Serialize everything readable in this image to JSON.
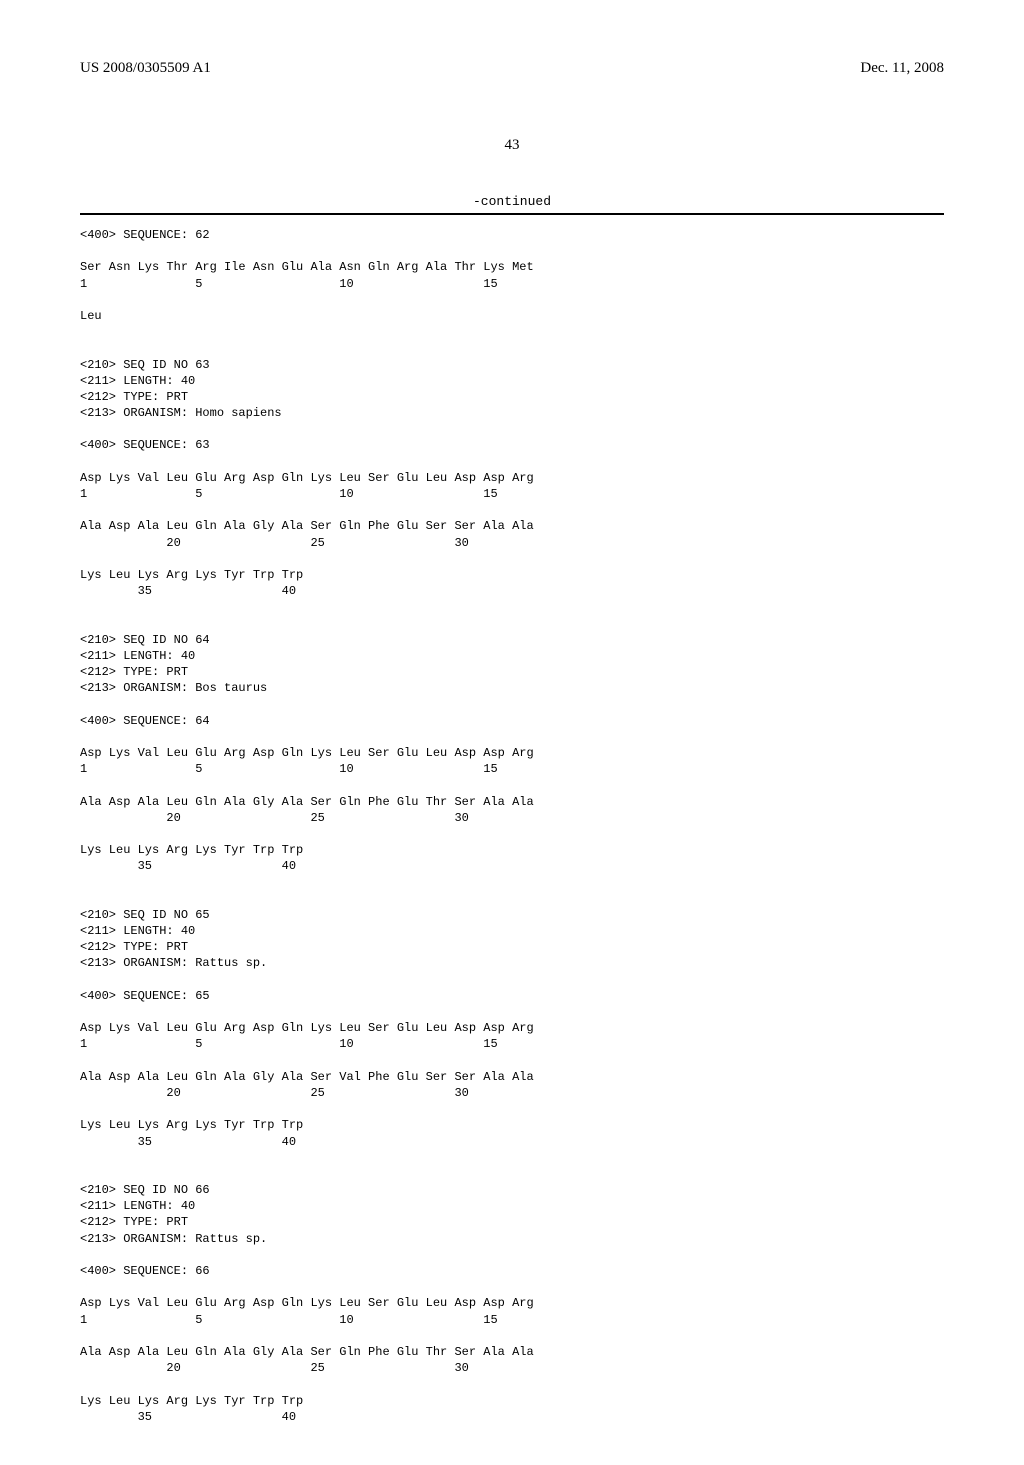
{
  "header": {
    "pub_number": "US 2008/0305509 A1",
    "pub_date": "Dec. 11, 2008",
    "page_number": "43"
  },
  "continued_label": "-continued",
  "sequence_listing": "<400> SEQUENCE: 62\n\nSer Asn Lys Thr Arg Ile Asn Glu Ala Asn Gln Arg Ala Thr Lys Met\n1               5                   10                  15\n\nLeu\n\n\n<210> SEQ ID NO 63\n<211> LENGTH: 40\n<212> TYPE: PRT\n<213> ORGANISM: Homo sapiens\n\n<400> SEQUENCE: 63\n\nAsp Lys Val Leu Glu Arg Asp Gln Lys Leu Ser Glu Leu Asp Asp Arg\n1               5                   10                  15\n\nAla Asp Ala Leu Gln Ala Gly Ala Ser Gln Phe Glu Ser Ser Ala Ala\n            20                  25                  30\n\nLys Leu Lys Arg Lys Tyr Trp Trp\n        35                  40\n\n\n<210> SEQ ID NO 64\n<211> LENGTH: 40\n<212> TYPE: PRT\n<213> ORGANISM: Bos taurus\n\n<400> SEQUENCE: 64\n\nAsp Lys Val Leu Glu Arg Asp Gln Lys Leu Ser Glu Leu Asp Asp Arg\n1               5                   10                  15\n\nAla Asp Ala Leu Gln Ala Gly Ala Ser Gln Phe Glu Thr Ser Ala Ala\n            20                  25                  30\n\nLys Leu Lys Arg Lys Tyr Trp Trp\n        35                  40\n\n\n<210> SEQ ID NO 65\n<211> LENGTH: 40\n<212> TYPE: PRT\n<213> ORGANISM: Rattus sp.\n\n<400> SEQUENCE: 65\n\nAsp Lys Val Leu Glu Arg Asp Gln Lys Leu Ser Glu Leu Asp Asp Arg\n1               5                   10                  15\n\nAla Asp Ala Leu Gln Ala Gly Ala Ser Val Phe Glu Ser Ser Ala Ala\n            20                  25                  30\n\nLys Leu Lys Arg Lys Tyr Trp Trp\n        35                  40\n\n\n<210> SEQ ID NO 66\n<211> LENGTH: 40\n<212> TYPE: PRT\n<213> ORGANISM: Rattus sp.\n\n<400> SEQUENCE: 66\n\nAsp Lys Val Leu Glu Arg Asp Gln Lys Leu Ser Glu Leu Asp Asp Arg\n1               5                   10                  15\n\nAla Asp Ala Leu Gln Ala Gly Ala Ser Gln Phe Glu Thr Ser Ala Ala\n            20                  25                  30\n\nLys Leu Lys Arg Lys Tyr Trp Trp\n        35                  40\n"
}
